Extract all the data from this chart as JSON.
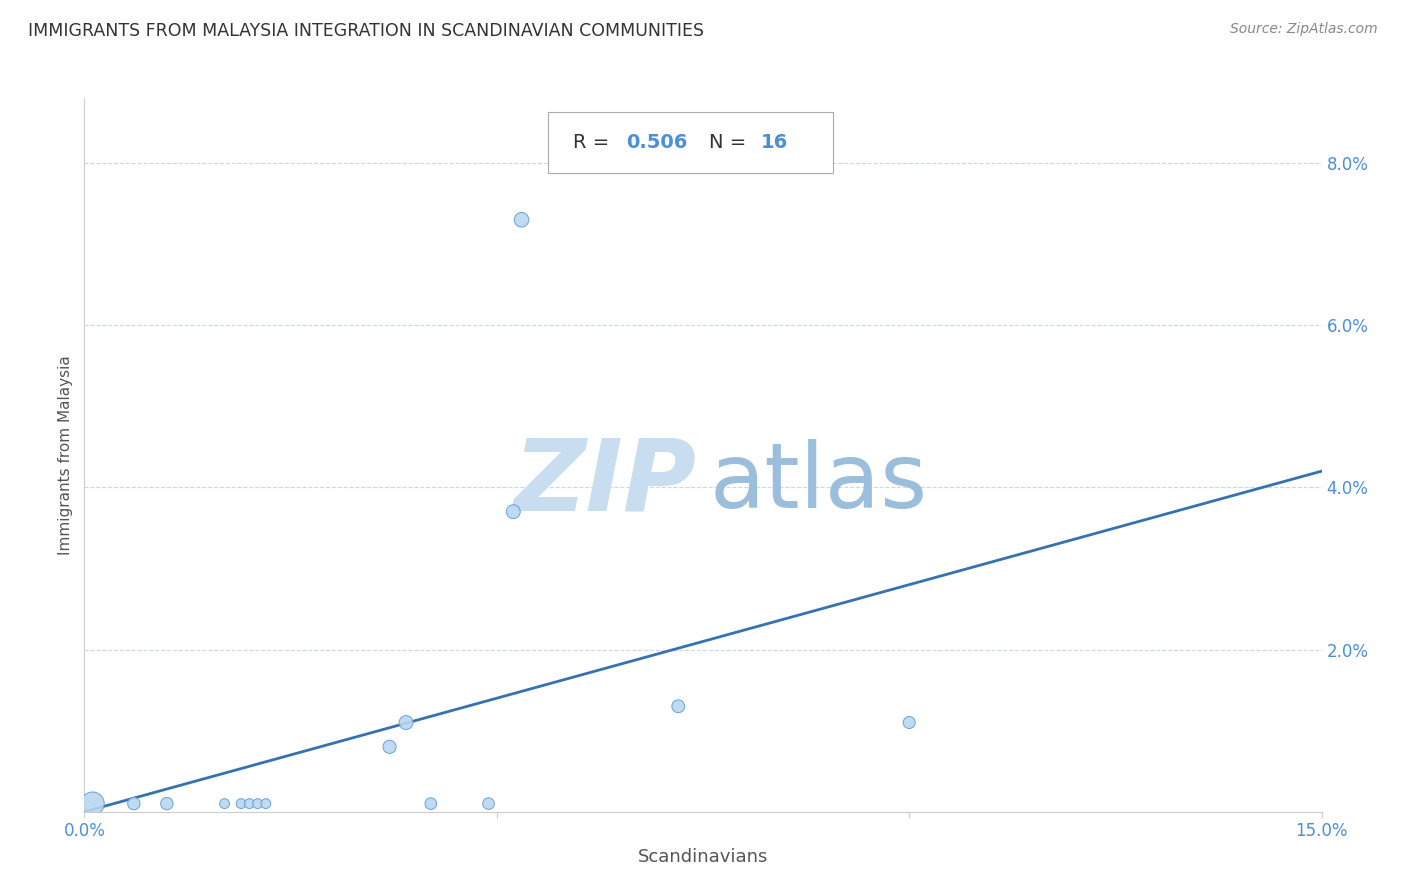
{
  "title": "IMMIGRANTS FROM MALAYSIA INTEGRATION IN SCANDINAVIAN COMMUNITIES",
  "source": "Source: ZipAtlas.com",
  "xlabel": "Scandinavians",
  "ylabel": "Immigrants from Malaysia",
  "R": 0.506,
  "N": 16,
  "xlim": [
    0.0,
    0.15
  ],
  "ylim": [
    0.0,
    0.088
  ],
  "yticks": [
    0.0,
    0.02,
    0.04,
    0.06,
    0.08
  ],
  "ytick_labels": [
    "",
    "2.0%",
    "4.0%",
    "6.0%",
    "8.0%"
  ],
  "scatter_x": [
    0.001,
    0.006,
    0.01,
    0.017,
    0.019,
    0.02,
    0.021,
    0.022,
    0.037,
    0.039,
    0.042,
    0.049,
    0.052,
    0.053,
    0.072,
    0.1
  ],
  "scatter_y": [
    0.001,
    0.001,
    0.001,
    0.001,
    0.001,
    0.001,
    0.001,
    0.001,
    0.008,
    0.011,
    0.001,
    0.001,
    0.037,
    0.073,
    0.013,
    0.011
  ],
  "scatter_sizes": [
    280,
    80,
    80,
    50,
    50,
    50,
    50,
    50,
    90,
    100,
    70,
    70,
    100,
    110,
    85,
    75
  ],
  "dot_color": "#bad6f0",
  "dot_edge_color": "#5b9bd5",
  "line_color": "#3572b0",
  "line_x": [
    0.0,
    0.15
  ],
  "line_y": [
    0.0,
    0.042
  ],
  "background_color": "#ffffff",
  "grid_color": "#c8d8e8",
  "title_color": "#333333",
  "axis_label_color": "#555555",
  "tick_color": "#4a90d9",
  "watermark_zip_color": "#c8ddf0",
  "watermark_atlas_color": "#9bbedd"
}
